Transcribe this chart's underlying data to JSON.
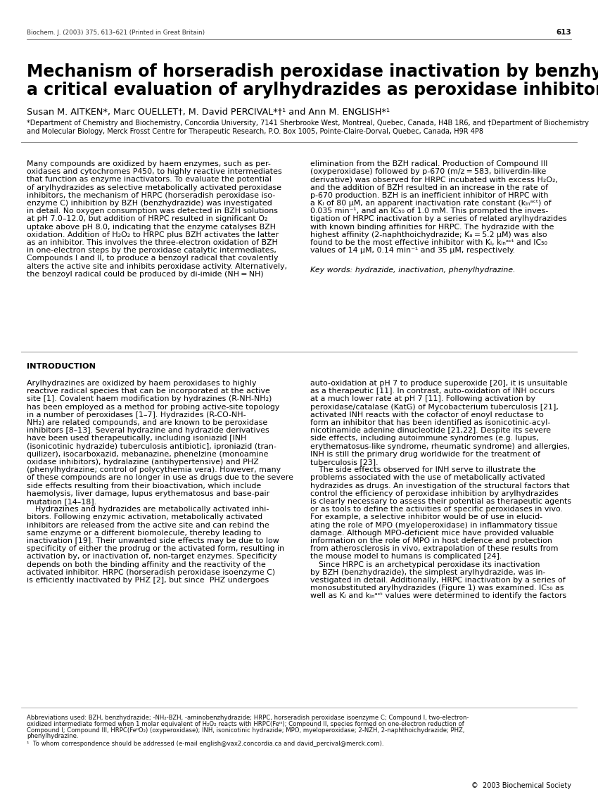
{
  "page_number": "613",
  "header_journal": "Biochem. J. (2003) 375, 613–621 (Printed in Great Britain)",
  "title_line1": "Mechanism of horseradish peroxidase inactivation by benzhydrazide:",
  "title_line2": "a critical evaluation of arylhydrazides as peroxidase inhibitors",
  "authors": "Susan M. AITKEN*, Marc OUELLET†, M. David PERCIVAL*†¹ and Ann M. ENGLISH*¹",
  "affiliation1": "*Department of Chemistry and Biochemistry, Concordia University, 7141 Sherbrooke West, Montreal, Quebec, Canada, H4B 1R6, and †Department of Biochemistry",
  "affiliation2": "and Molecular Biology, Merck Frosst Centre for Therapeutic Research, P.O. Box 1005, Pointe-Claire-Dorval, Quebec, Canada, H9R 4P8",
  "abstract_left_lines": [
    "Many compounds are oxidized by haem enzymes, such as per-",
    "oxidases and cytochromes P450, to highly reactive intermediates",
    "that function as enzyme inactivators. To evaluate the potential",
    "of arylhydrazides as selective metabolically activated peroxidase",
    "inhibitors, the mechanism of HRPC (horseradish peroxidase iso-",
    "enzyme C) inhibition by BZH (benzhydrazide) was investigated",
    "in detail. No oxygen consumption was detected in BZH solutions",
    "at pH 7.0–12.0, but addition of HRPC resulted in significant O₂",
    "uptake above pH 8.0, indicating that the enzyme catalyses BZH",
    "oxidation. Addition of H₂O₂ to HRPC plus BZH activates the latter",
    "as an inhibitor. This involves the three-electron oxidation of BZH",
    "in one-electron steps by the peroxidase catalytic intermediates,",
    "Compounds I and II, to produce a benzoyl radical that covalently",
    "alters the active site and inhibits peroxidase activity. Alternatively,",
    "the benzoyl radical could be produced by di-imide (NH = NH)"
  ],
  "abstract_right_lines": [
    "elimination from the BZH radical. Production of Compound III",
    "(oxyperoxidase) followed by p-670 (m/z = 583, biliverdin-like",
    "derivative) was observed for HRPC incubated with excess H₂O₂,",
    "and the addition of BZH resulted in an increase in the rate of",
    "p-670 production. BZH is an inefficient inhibitor of HRPC with",
    "a Kᵢ of 80 μM, an apparent inactivation rate constant (kᵢₙᵃᶜᵗ) of",
    "0.035 min⁻¹, and an IC₅₀ of 1.0 mM. This prompted the inves-",
    "tigation of HRPC inactivation by a series of related arylhydrazides",
    "with known binding affinities for HRPC. The hydrazide with the",
    "highest affinity (2-naphthoichydrazide; Kₐ = 5.2 μM) was also",
    "found to be the most effective inhibitor with Kᵢ, kᵢₙᵃᶜᵗ and IC₅₀",
    "values of 14 μM, 0.14 min⁻¹ and 35 μM, respectively."
  ],
  "keywords": "Key words: hydrazide, inactivation, phenylhydrazine.",
  "intro_heading": "INTRODUCTION",
  "intro_left_lines": [
    "Arylhydrazines are oxidized by haem peroxidases to highly",
    "reactive radical species that can be incorporated at the active",
    "site [1]. Covalent haem modification by hydrazines (R-NH-NH₂)",
    "has been employed as a method for probing active-site topology",
    "in a number of peroxidases [1–7]. Hydrazides (R-CO-NH-",
    "NH₂) are related compounds, and are known to be peroxidase",
    "inhibitors [8–13]. Several hydrazine and hydrazide derivatives",
    "have been used therapeutically, including isoniazid [INH",
    "(isonicotinic hydrazide) tuberculosis antibiotic], iproniazid (tran-",
    "quilizer), isocarboxazid, mebanazine, phenelzine (monoamine",
    "oxidase inhibitors), hydralazine (antihypertensive) and PHZ",
    "(phenylhydrazine; control of polycythemia vera). However, many",
    "of these compounds are no longer in use as drugs due to the severe",
    "side effects resulting from their bioactivation, which include",
    "haemolysis, liver damage, lupus erythematosus and base-pair",
    "mutation [14–18].",
    "    Hydrazines and hydrazides are metabolically activated inhi-",
    "bitors. Following enzymic activation, metabolically activated",
    "inhibitors are released from the active site and can rebind the",
    "same enzyme or a different biomolecule, thereby leading to",
    "inactivation [19]. Their unwanted side effects may be due to low",
    "specificity of either the prodrug or the activated form, resulting in",
    "activation by, or inactivation of, non-target enzymes. Specificity",
    "depends on both the binding affinity and the reactivity of the",
    "activated inhibitor. HRPC (horseradish peroxidase isoenzyme C)",
    "is efficiently inactivated by PHZ [2], but since  PHZ undergoes"
  ],
  "intro_right_lines": [
    "auto-oxidation at pH 7 to produce superoxide [20], it is unsuitable",
    "as a therapeutic [11]. In contrast, auto-oxidation of INH occurs",
    "at a much lower rate at pH 7 [11]. Following activation by",
    "peroxidase/catalase (KatG) of Mycobacterium tuberculosis [21],",
    "activated INH reacts with the cofactor of enoyl reductase to",
    "form an inhibitor that has been identified as isonicotinic-acyl-",
    "nicotinamide adenine dinucleotide [21,22]. Despite its severe",
    "side effects, including autoimmune syndromes (e.g. lupus,",
    "erythematosus-like syndrome, rheumatic syndrome) and allergies,",
    "INH is still the primary drug worldwide for the treatment of",
    "tuberculosis [23].",
    "    The side effects observed for INH serve to illustrate the",
    "problems associated with the use of metabolically activated",
    "hydrazides as drugs. An investigation of the structural factors that",
    "control the efficiency of peroxidase inhibition by arylhydrazides",
    "is clearly necessary to assess their potential as therapeutic agents",
    "or as tools to define the activities of specific peroxidases in vivo.",
    "For example, a selective inhibitor would be of use in elucid-",
    "ating the role of MPO (myeloperoxidase) in inflammatory tissue",
    "damage. Although MPO-deficient mice have provided valuable",
    "information on the role of MPO in host defence and protection",
    "from atherosclerosis in vivo, extrapolation of these results from",
    "the mouse model to humans is complicated [24].",
    "    Since HRPC is an archetypical peroxidase its inactivation",
    "by BZH (benzhydrazide), the simplest arylhydrazide, was in-",
    "vestigated in detail. Additionally, HRPC inactivation by a series of",
    "monosubstituted arylhydrazides (Figure 1) was examined. IC₅₀ as",
    "well as Kᵢ and kᵢₙᵃᶜᵗ values were determined to identify the factors"
  ],
  "footnote_lines": [
    "Abbreviations used: BZH, benzhydrazide; -NH₂-BZH, -aminobenzhydrazide; HRPC, horseradish peroxidase isoenzyme C; Compound I, two-electron-",
    "oxidized intermediate formed when 1 molar equivalent of H₂O₂ reacts with HRPC(Feᴵᴵᴵ); Compound II, species formed on one-electron reduction of",
    "Compound I; Compound III, HRPC(FeᴵᴵO₂) (oxyperoxidase); INH, isonicotinic hydrazide; MPO, myeloperoxidase; 2-NZH, 2-naphthoichydrazide; PHZ,",
    "phenylhydrazine."
  ],
  "footnote_correspondence": "¹  To whom correspondence should be addressed (e-mail english@vax2.concordia.ca and david_percival@merck.com).",
  "copyright": "©  2003 Biochemical Society",
  "background_color": "#ffffff",
  "text_color": "#000000"
}
